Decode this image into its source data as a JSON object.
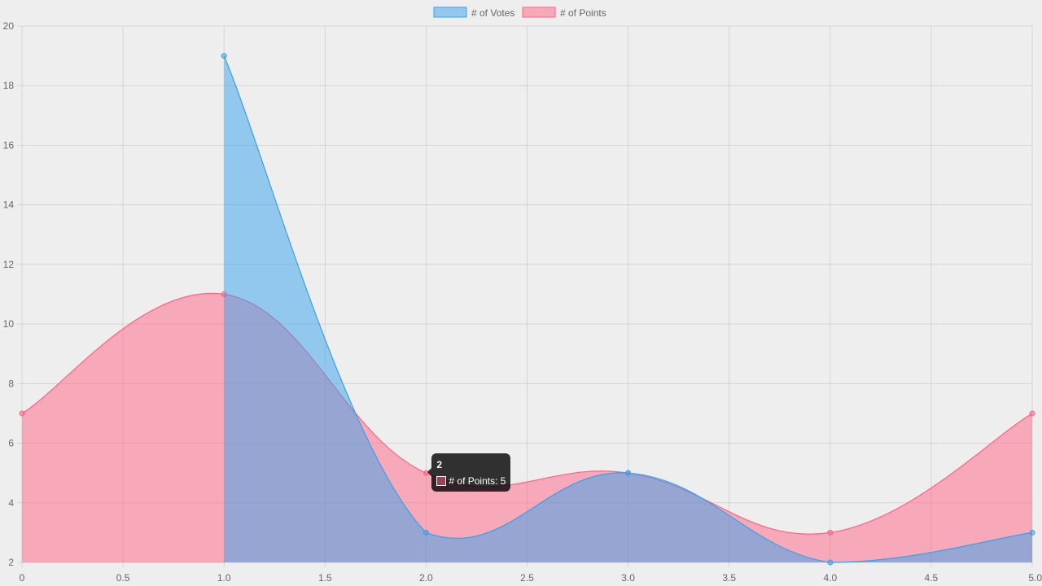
{
  "chart_data": {
    "type": "area",
    "title": "",
    "xlabel": "",
    "ylabel": "",
    "xlim": [
      0,
      5
    ],
    "ylim": [
      2,
      20
    ],
    "x_ticks": [
      "0",
      "0.5",
      "1.0",
      "1.5",
      "2.0",
      "2.5",
      "3.0",
      "3.5",
      "4.0",
      "4.5",
      "5.0"
    ],
    "y_ticks": [
      "2",
      "4",
      "6",
      "8",
      "10",
      "12",
      "14",
      "16",
      "18",
      "20"
    ],
    "grid": true,
    "legend_position": "top",
    "series": [
      {
        "name": "# of Votes",
        "color": "#36a2eb",
        "fill": "rgba(54,162,235,0.5)",
        "points": [
          [
            1,
            19
          ],
          [
            2,
            3
          ],
          [
            3,
            5
          ],
          [
            4,
            2
          ],
          [
            5,
            3
          ]
        ]
      },
      {
        "name": "# of Points",
        "color": "#ff6384",
        "fill": "rgba(255,99,132,0.5)",
        "points": [
          [
            0,
            7
          ],
          [
            1,
            11
          ],
          [
            2,
            5
          ],
          [
            3,
            5
          ],
          [
            4,
            3
          ],
          [
            5,
            7
          ]
        ]
      }
    ],
    "tooltip": {
      "title": "2",
      "label": "# of Points: 5",
      "series_index": 1,
      "x": 2,
      "y": 5
    }
  }
}
